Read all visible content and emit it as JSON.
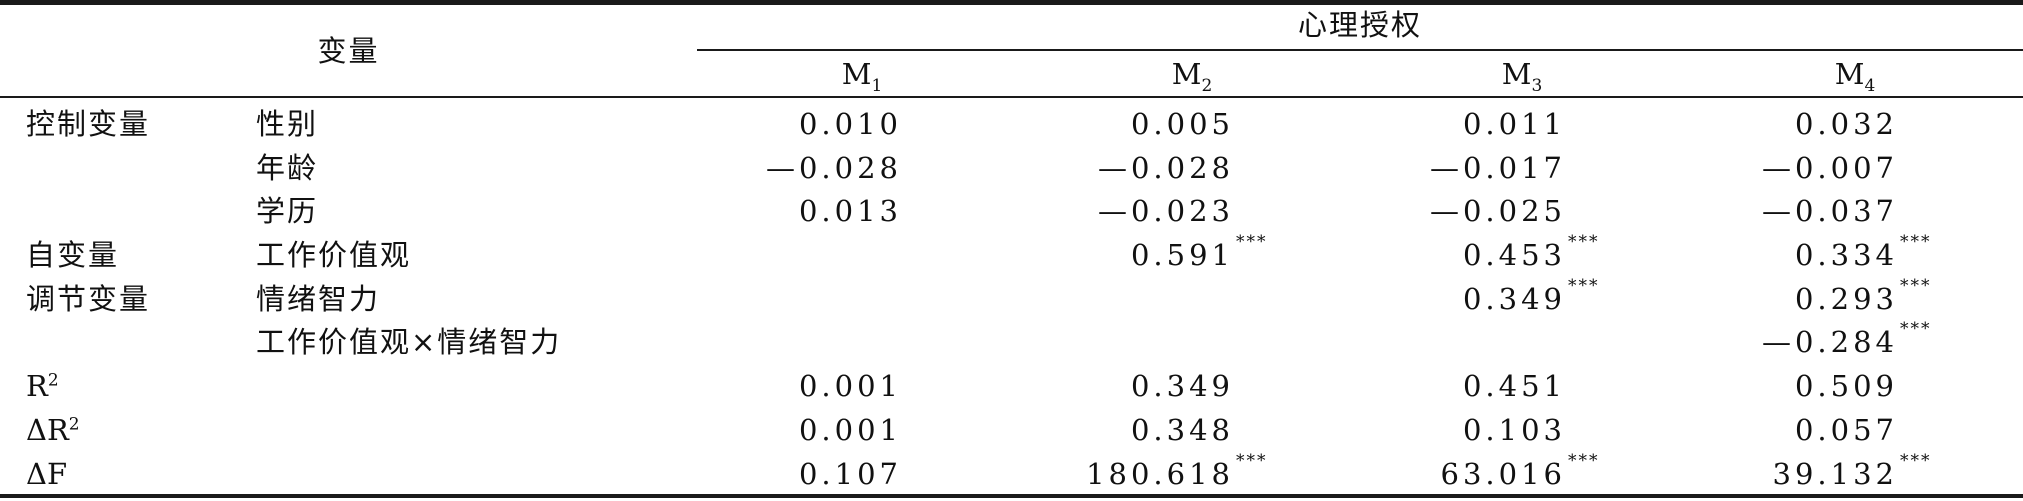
{
  "header": {
    "variable_label": "变量",
    "group_label": "心理授权",
    "models": [
      {
        "base": "M",
        "sub": "1"
      },
      {
        "base": "M",
        "sub": "2"
      },
      {
        "base": "M",
        "sub": "3"
      },
      {
        "base": "M",
        "sub": "4"
      }
    ]
  },
  "rows": [
    {
      "category": "控制变量",
      "variable": "性别",
      "cells": [
        {
          "value": "0.010",
          "sig": ""
        },
        {
          "value": "0.005",
          "sig": ""
        },
        {
          "value": "0.011",
          "sig": ""
        },
        {
          "value": "0.032",
          "sig": ""
        }
      ]
    },
    {
      "category": "",
      "variable": "年龄",
      "cells": [
        {
          "value": "—0.028",
          "sig": ""
        },
        {
          "value": "—0.028",
          "sig": ""
        },
        {
          "value": "—0.017",
          "sig": ""
        },
        {
          "value": "—0.007",
          "sig": ""
        }
      ]
    },
    {
      "category": "",
      "variable": "学历",
      "cells": [
        {
          "value": "0.013",
          "sig": ""
        },
        {
          "value": "—0.023",
          "sig": ""
        },
        {
          "value": "—0.025",
          "sig": ""
        },
        {
          "value": "—0.037",
          "sig": ""
        }
      ]
    },
    {
      "category": "自变量",
      "variable": "工作价值观",
      "cells": [
        {
          "value": "",
          "sig": ""
        },
        {
          "value": "0.591",
          "sig": "***"
        },
        {
          "value": "0.453",
          "sig": "***"
        },
        {
          "value": "0.334",
          "sig": "***"
        }
      ]
    },
    {
      "category": "调节变量",
      "variable": "情绪智力",
      "cells": [
        {
          "value": "",
          "sig": ""
        },
        {
          "value": "",
          "sig": ""
        },
        {
          "value": "0.349",
          "sig": "***"
        },
        {
          "value": "0.293",
          "sig": "***"
        }
      ]
    },
    {
      "category": "",
      "variable": "工作价值观×情绪智力",
      "cells": [
        {
          "value": "",
          "sig": ""
        },
        {
          "value": "",
          "sig": ""
        },
        {
          "value": "",
          "sig": ""
        },
        {
          "value": "—0.284",
          "sig": "***"
        }
      ]
    },
    {
      "category": "R",
      "category_sup": "2",
      "variable": "",
      "cells": [
        {
          "value": "0.001",
          "sig": ""
        },
        {
          "value": "0.349",
          "sig": ""
        },
        {
          "value": "0.451",
          "sig": ""
        },
        {
          "value": "0.509",
          "sig": ""
        }
      ]
    },
    {
      "category": "ΔR",
      "category_sup": "2",
      "variable": "",
      "cells": [
        {
          "value": "0.001",
          "sig": ""
        },
        {
          "value": "0.348",
          "sig": ""
        },
        {
          "value": "0.103",
          "sig": ""
        },
        {
          "value": "0.057",
          "sig": ""
        }
      ]
    },
    {
      "category": "ΔF",
      "variable": "",
      "cells": [
        {
          "value": "0.107",
          "sig": ""
        },
        {
          "value": "180.618",
          "sig": "***"
        },
        {
          "value": "63.016",
          "sig": "***"
        },
        {
          "value": "39.132",
          "sig": "***"
        }
      ]
    }
  ]
}
